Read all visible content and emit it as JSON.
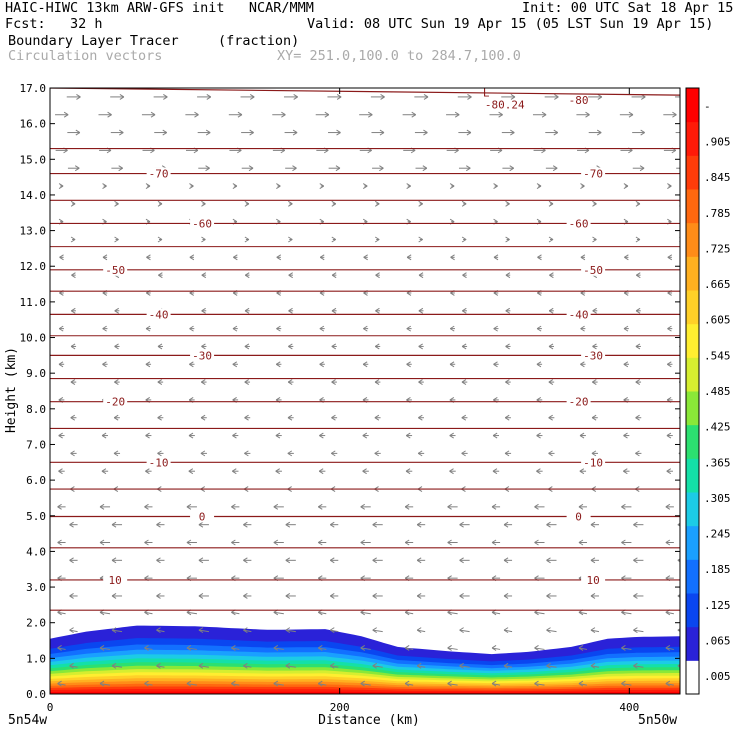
{
  "header": {
    "title_left": "HAIC-HIWC 13km ARW-GFS init   NCAR/MMM",
    "fcst": "Fcst:   32 h",
    "init": "Init: 00 UTC Sat 18 Apr 15",
    "valid": "Valid: 08 UTC Sun 19 Apr 15 (05 LST Sun 19 Apr 15)",
    "field_name": "Boundary Layer Tracer",
    "field_units": "(fraction)",
    "vector_label": "Circulation vectors",
    "xy_label": "XY= 251.0,100.0 to 284.7,100.0"
  },
  "chart_data": {
    "type": "heatmap",
    "title": "Boundary Layer Tracer",
    "xlabel": "Distance (km)",
    "ylabel": "Height (km)",
    "xlim": [
      0,
      435
    ],
    "ylim": [
      0,
      17
    ],
    "x_ticks": [
      0,
      200,
      400
    ],
    "x_end_labels": [
      "5n54w",
      "5n50w"
    ],
    "y_ticks": [
      "0.0",
      "1.0",
      "2.0",
      "3.0",
      "4.0",
      "5.0",
      "6.0",
      "7.0",
      "8.0",
      "9.0",
      "10.0",
      "11.0",
      "12.0",
      "13.0",
      "14.0",
      "15.0",
      "16.0",
      "17.0"
    ],
    "colorbar": {
      "labels": [
        ".005",
        ".065",
        ".125",
        ".185",
        ".245",
        ".305",
        ".365",
        ".425",
        ".485",
        ".545",
        ".605",
        ".665",
        ".725",
        ".785",
        ".845",
        ".905",
        "-"
      ],
      "colors": [
        "#ffffff",
        "#2a22d8",
        "#0a46f0",
        "#1270ff",
        "#1aa0ff",
        "#1ccbe6",
        "#14e0a8",
        "#2ce070",
        "#8ae838",
        "#d6ee30",
        "#ffee30",
        "#ffd028",
        "#ffb020",
        "#ff8c18",
        "#ff6810",
        "#ff3c0a",
        "#ff1a08",
        "#ff0000"
      ]
    },
    "tracer_top_km": [
      [
        0,
        1.55
      ],
      [
        25,
        1.75
      ],
      [
        60,
        1.92
      ],
      [
        100,
        1.9
      ],
      [
        150,
        1.8
      ],
      [
        190,
        1.82
      ],
      [
        215,
        1.62
      ],
      [
        240,
        1.32
      ],
      [
        275,
        1.2
      ],
      [
        305,
        1.12
      ],
      [
        330,
        1.18
      ],
      [
        360,
        1.32
      ],
      [
        385,
        1.55
      ],
      [
        405,
        1.6
      ],
      [
        435,
        1.62
      ]
    ],
    "temperature_contours_C": [
      {
        "value": -80,
        "label": "-80",
        "height_km": [
          17.0,
          16.8
        ]
      },
      {
        "value": -70,
        "label": "-70",
        "height_km": [
          14.6,
          14.6
        ]
      },
      {
        "value": -60,
        "label": "-60",
        "height_km": [
          13.2,
          13.2
        ]
      },
      {
        "value": -50,
        "label": "-50",
        "height_km": [
          11.9,
          11.9
        ]
      },
      {
        "value": -40,
        "label": "-40",
        "height_km": [
          10.65,
          10.65
        ]
      },
      {
        "value": -30,
        "label": "-30",
        "height_km": [
          9.5,
          9.5
        ]
      },
      {
        "value": -20,
        "label": "-20",
        "height_km": [
          8.2,
          8.2
        ]
      },
      {
        "value": -10,
        "label": "-10",
        "height_km": [
          6.5,
          6.5
        ]
      },
      {
        "value": 0,
        "label": "0",
        "height_km": [
          4.98,
          4.98
        ]
      },
      {
        "value": 10,
        "label": "10",
        "height_km": [
          3.2,
          3.2
        ]
      }
    ],
    "low_marker": {
      "label": "L",
      "value_label": "-80.24",
      "x_km": 292,
      "height_km": 16.7
    },
    "wind_regimes": [
      {
        "height_range_km": [
          14.5,
          17
        ],
        "direction": "eastward"
      },
      {
        "height_range_km": [
          5.5,
          14.5
        ],
        "direction": "weak / westward"
      },
      {
        "height_range_km": [
          0,
          5.5
        ],
        "direction": "westward"
      }
    ],
    "grid": false,
    "legend": "right colorbar"
  }
}
